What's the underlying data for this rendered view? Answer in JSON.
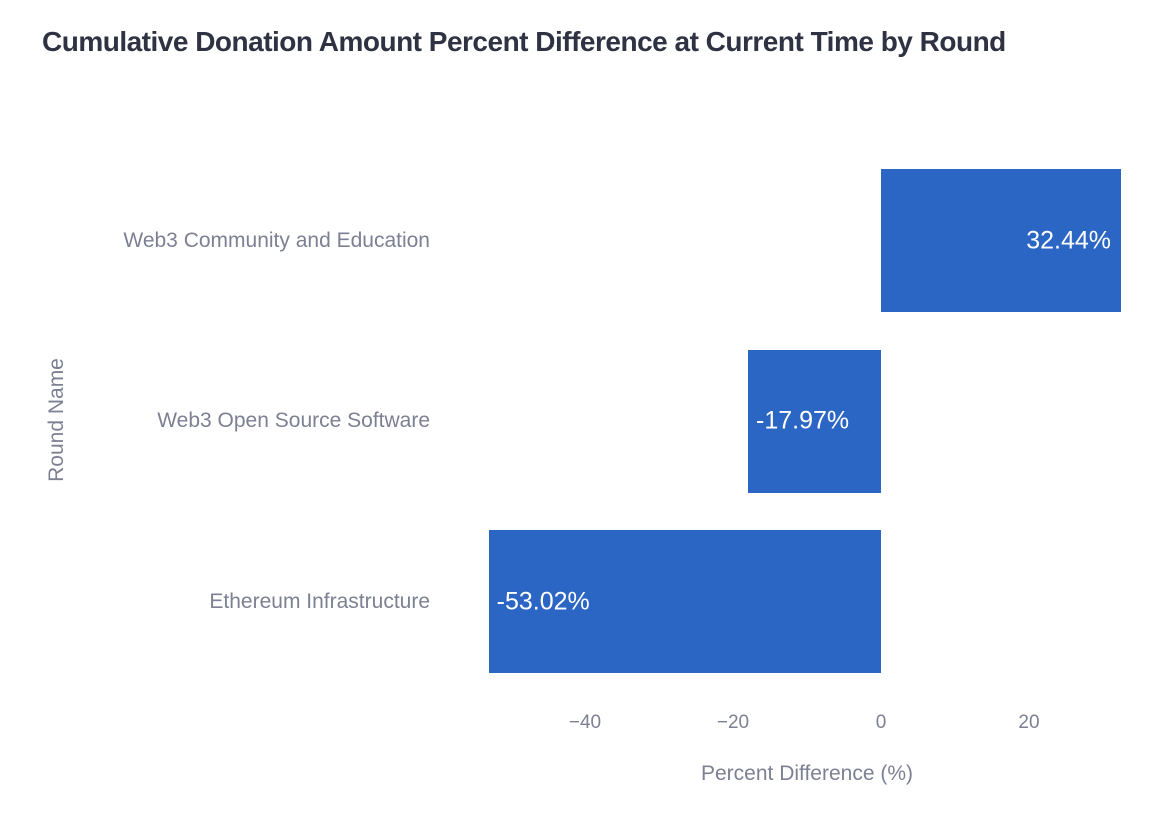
{
  "page": {
    "title": "Cumulative Donation Amount Percent Difference at Current Time by Round"
  },
  "chart_data": {
    "type": "bar",
    "orientation": "horizontal",
    "title": "Cumulative Donation Amount Percent Difference at Current Time by Round",
    "xlabel": "Percent Difference (%)",
    "ylabel": "Round Name",
    "categories": [
      "Web3 Community and Education",
      "Web3 Open Source Software",
      "Ethereum Infrastructure"
    ],
    "values": [
      32.44,
      -17.97,
      -53.02
    ],
    "bar_labels": [
      "32.44%",
      "-17.97%",
      "-53.02%"
    ],
    "x_ticks": [
      {
        "value": -40,
        "label": "−40"
      },
      {
        "value": -20,
        "label": "−20"
      },
      {
        "value": 0,
        "label": "0"
      },
      {
        "value": 20,
        "label": "20"
      }
    ],
    "xlim": [
      -57,
      33
    ],
    "grid": false,
    "legend": "none",
    "colors": {
      "bar": "#2b66c4",
      "bar_label_text": "#ffffff",
      "title_text": "#2f3242",
      "axis_text": "#7d8093",
      "background": "#ffffff"
    }
  }
}
